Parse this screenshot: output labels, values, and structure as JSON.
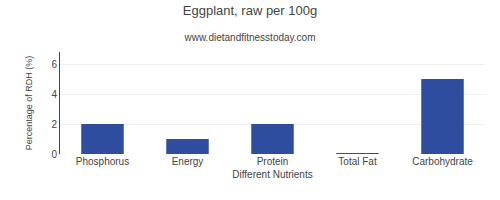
{
  "chart_data": {
    "type": "bar",
    "title": "Eggplant, raw per 100g",
    "subtitle": "www.dietandfitnesstoday.com",
    "xlabel": "Different Nutrients",
    "ylabel": "Percentage of RDH (%)",
    "categories": [
      "Phosphorus",
      "Energy",
      "Protein",
      "Total Fat",
      "Carbohydrate"
    ],
    "values": [
      2.0,
      1.0,
      2.0,
      0.05,
      5.0
    ],
    "color": "#2e4d9e",
    "ylim": [
      0,
      6.8
    ],
    "yticks": [
      0,
      2,
      4,
      6
    ],
    "grid": true
  }
}
